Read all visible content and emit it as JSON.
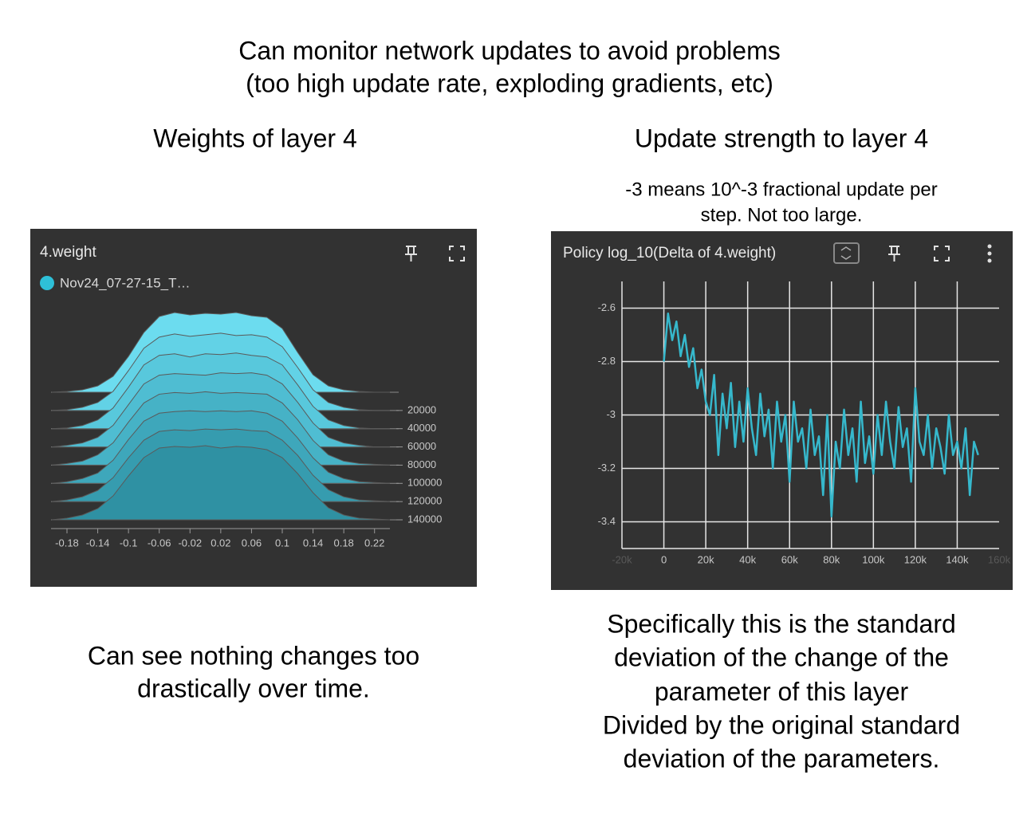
{
  "header": {
    "line1": "Can monitor network updates to avoid problems",
    "line2": "(too high update rate, exploding gradients, etc)"
  },
  "left": {
    "heading": "Weights of layer 4",
    "caption": [
      "Can see nothing changes too",
      "drastically over time."
    ]
  },
  "right": {
    "heading": "Update strength to layer 4",
    "note": [
      "-3 means 10^-3 fractional update per",
      "step. Not too large."
    ],
    "caption": [
      "Specifically this is the standard",
      "deviation of the change of the",
      "parameter of this layer",
      "Divided by the original standard",
      "deviation of the parameters."
    ]
  },
  "chart_data": [
    {
      "type": "ridge",
      "title": "4.weight",
      "run": "Nov24_07-27-15_T…",
      "run_color": "#2ec0d8",
      "x": [
        -0.2,
        -0.18,
        -0.16,
        -0.14,
        -0.12,
        -0.1,
        -0.08,
        -0.06,
        -0.04,
        -0.02,
        0,
        0.02,
        0.04,
        0.06,
        0.08,
        0.1,
        0.12,
        0.14,
        0.16,
        0.18,
        0.2,
        0.22,
        0.24
      ],
      "xlim": [
        -0.2,
        0.24
      ],
      "xticks": [
        -0.18,
        -0.14,
        -0.1,
        -0.06,
        -0.02,
        0.02,
        0.06,
        0.1,
        0.14,
        0.18,
        0.22
      ],
      "ylim": [
        0,
        140000
      ],
      "yticks": [
        20000,
        40000,
        60000,
        80000,
        100000,
        120000,
        140000
      ],
      "series": [
        {
          "step": 0,
          "color": "#6cdcef",
          "values": [
            0,
            1,
            3,
            8,
            20,
            45,
            75,
            95,
            100,
            97,
            99,
            98,
            100,
            96,
            94,
            80,
            50,
            22,
            8,
            3,
            1,
            0,
            0
          ]
        },
        {
          "step": 20000,
          "color": "#62d2e6",
          "values": [
            0,
            1,
            4,
            10,
            24,
            50,
            78,
            92,
            96,
            93,
            95,
            97,
            94,
            95,
            92,
            80,
            54,
            26,
            10,
            4,
            1,
            0,
            0
          ]
        },
        {
          "step": 40000,
          "color": "#58c8dc",
          "values": [
            0,
            1,
            4,
            11,
            26,
            52,
            80,
            92,
            94,
            90,
            94,
            93,
            95,
            92,
            90,
            80,
            55,
            28,
            11,
            4,
            1,
            0,
            0
          ]
        },
        {
          "step": 60000,
          "color": "#4fbdd2",
          "values": [
            0,
            2,
            5,
            12,
            27,
            53,
            79,
            90,
            92,
            91,
            90,
            93,
            92,
            93,
            90,
            79,
            56,
            30,
            12,
            5,
            2,
            0,
            0
          ]
        },
        {
          "step": 80000,
          "color": "#46b2c6",
          "values": [
            0,
            2,
            5,
            13,
            28,
            54,
            78,
            89,
            91,
            90,
            92,
            90,
            91,
            90,
            89,
            78,
            57,
            31,
            13,
            5,
            2,
            1,
            0
          ]
        },
        {
          "step": 100000,
          "color": "#3ea7bb",
          "values": [
            0,
            2,
            6,
            13,
            29,
            55,
            78,
            88,
            90,
            91,
            90,
            91,
            90,
            91,
            88,
            78,
            57,
            32,
            14,
            6,
            2,
            1,
            0
          ]
        },
        {
          "step": 120000,
          "color": "#369caf",
          "values": [
            0,
            2,
            6,
            14,
            30,
            55,
            77,
            88,
            90,
            89,
            91,
            90,
            91,
            89,
            88,
            77,
            58,
            33,
            15,
            6,
            2,
            1,
            0
          ]
        },
        {
          "step": 140000,
          "color": "#2f91a3",
          "values": [
            0,
            2,
            6,
            14,
            30,
            55,
            78,
            90,
            92,
            91,
            93,
            90,
            92,
            91,
            88,
            78,
            58,
            34,
            15,
            6,
            2,
            1,
            0
          ]
        }
      ]
    },
    {
      "type": "line",
      "title": "Policy log_10(Delta of 4.weight)",
      "color": "#36b8cc",
      "grid": true,
      "xlim": [
        -20000,
        160000
      ],
      "ylim": [
        -3.5,
        -2.5
      ],
      "xticks": [
        {
          "value": -20000,
          "label": "-20k"
        },
        0,
        {
          "value": 20000,
          "label": "20k"
        },
        {
          "value": 40000,
          "label": "40k"
        },
        {
          "value": 60000,
          "label": "60k"
        },
        {
          "value": 80000,
          "label": "80k"
        },
        {
          "value": 100000,
          "label": "100k"
        },
        {
          "value": 120000,
          "label": "120k"
        },
        {
          "value": 140000,
          "label": "140k"
        },
        {
          "value": 160000,
          "label": "160k"
        }
      ],
      "yticks": [
        -2.6,
        -2.8,
        -3,
        -3.2,
        -3.4
      ],
      "x": [
        0,
        2000,
        4000,
        6000,
        8000,
        10000,
        12000,
        14000,
        16000,
        18000,
        20000,
        22000,
        24000,
        26000,
        28000,
        30000,
        32000,
        34000,
        36000,
        38000,
        40000,
        42000,
        44000,
        46000,
        48000,
        50000,
        52000,
        54000,
        56000,
        58000,
        60000,
        62000,
        64000,
        66000,
        68000,
        70000,
        72000,
        74000,
        76000,
        78000,
        80000,
        82000,
        84000,
        86000,
        88000,
        90000,
        92000,
        94000,
        96000,
        98000,
        100000,
        102000,
        104000,
        106000,
        108000,
        110000,
        112000,
        114000,
        116000,
        118000,
        120000,
        122000,
        124000,
        126000,
        128000,
        130000,
        132000,
        134000,
        136000,
        138000,
        140000,
        142000,
        144000,
        146000,
        148000,
        150000
      ],
      "values": [
        -2.8,
        -2.62,
        -2.72,
        -2.65,
        -2.78,
        -2.7,
        -2.82,
        -2.75,
        -2.9,
        -2.83,
        -2.95,
        -3.0,
        -2.85,
        -3.15,
        -2.92,
        -3.05,
        -2.88,
        -3.12,
        -2.95,
        -3.1,
        -2.9,
        -3.05,
        -3.15,
        -2.92,
        -3.08,
        -2.98,
        -3.2,
        -2.95,
        -3.1,
        -3.0,
        -3.25,
        -2.95,
        -3.1,
        -3.05,
        -3.2,
        -2.98,
        -3.15,
        -3.08,
        -3.3,
        -3.0,
        -3.38,
        -3.1,
        -3.2,
        -2.98,
        -3.15,
        -3.05,
        -3.25,
        -2.95,
        -3.18,
        -3.08,
        -3.22,
        -3.0,
        -3.15,
        -2.95,
        -3.1,
        -3.2,
        -2.97,
        -3.12,
        -3.05,
        -3.25,
        -2.9,
        -3.1,
        -3.15,
        -3.0,
        -3.2,
        -3.05,
        -3.12,
        -3.22,
        -3.0,
        -3.15,
        -3.1,
        -3.2,
        -3.05,
        -3.3,
        -3.1,
        -3.15
      ]
    }
  ]
}
